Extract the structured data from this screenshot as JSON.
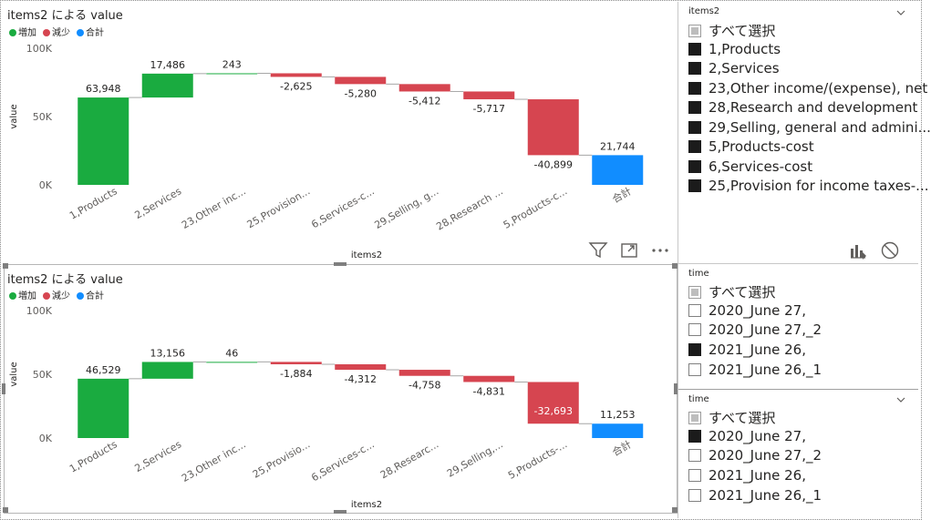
{
  "colors": {
    "increase": "#1aab40",
    "decrease": "#d64550",
    "total": "#118dff",
    "text": "#252423",
    "axis": "#605e5c",
    "grid": "#e1e1e1"
  },
  "legend": {
    "items": [
      {
        "label": "増加",
        "color": "#1aab40"
      },
      {
        "label": "減少",
        "color": "#d64550"
      },
      {
        "label": "合計",
        "color": "#118dff"
      }
    ]
  },
  "chart_data": [
    {
      "type": "waterfall",
      "title": "items2 による value",
      "xlabel": "items2",
      "ylabel": "value",
      "ylim": [
        0,
        100000
      ],
      "y_ticks": [
        "0K",
        "50K",
        "100K"
      ],
      "y_tick_values": [
        0,
        50000,
        100000
      ],
      "categories": [
        "1,Products",
        "2,Services",
        "23,Other inc...",
        "25,Provision...",
        "6,Services-c...",
        "29,Selling, g...",
        "28,Research ...",
        "5,Products-c...",
        "合計"
      ],
      "values": [
        63948,
        17486,
        243,
        -2625,
        -5280,
        -5412,
        -5717,
        -40899,
        21744
      ],
      "labels": [
        "63,948",
        "17,486",
        "243",
        "-2,625",
        "-5,280",
        "-5,412",
        "-5,717",
        "-40,899",
        "21,744"
      ],
      "kinds": [
        "increase",
        "increase",
        "increase",
        "decrease",
        "decrease",
        "decrease",
        "decrease",
        "decrease",
        "total"
      ]
    },
    {
      "type": "waterfall",
      "title": "items2 による value",
      "xlabel": "items2",
      "ylabel": "value",
      "ylim": [
        0,
        100000
      ],
      "y_ticks": [
        "0K",
        "50K",
        "100K"
      ],
      "y_tick_values": [
        0,
        50000,
        100000
      ],
      "categories": [
        "1,Products",
        "2,Services",
        "23,Other inc...",
        "25,Provisio...",
        "6,Services-c...",
        "28,Researc...",
        "29,Selling,...",
        "5,Products-...",
        "合計"
      ],
      "values": [
        46529,
        13156,
        46,
        -1884,
        -4312,
        -4758,
        -4831,
        -32693,
        11253
      ],
      "labels": [
        "46,529",
        "13,156",
        "46",
        "-1,884",
        "-4,312",
        "-4,758",
        "-4,831",
        "-32,693",
        "11,253"
      ],
      "kinds": [
        "increase",
        "increase",
        "increase",
        "decrease",
        "decrease",
        "decrease",
        "decrease",
        "decrease",
        "total"
      ]
    }
  ],
  "slicers": {
    "items2": {
      "title": "items2",
      "items": [
        {
          "label": "すべて選択",
          "state": "partial"
        },
        {
          "label": "1,Products",
          "state": "on"
        },
        {
          "label": "2,Services",
          "state": "on"
        },
        {
          "label": "23,Other income/(expense), net",
          "state": "on"
        },
        {
          "label": "28,Research and development",
          "state": "on"
        },
        {
          "label": "29,Selling, general and admini...",
          "state": "on"
        },
        {
          "label": "5,Products-cost",
          "state": "on"
        },
        {
          "label": "6,Services-cost",
          "state": "on"
        },
        {
          "label": "25,Provision for income taxes-...",
          "state": "on"
        }
      ]
    },
    "time1": {
      "title": "time",
      "items": [
        {
          "label": "すべて選択",
          "state": "partial"
        },
        {
          "label": "2020_June 27,",
          "state": "off"
        },
        {
          "label": "2020_June 27,_2",
          "state": "off"
        },
        {
          "label": "2021_June 26,",
          "state": "on"
        },
        {
          "label": "2021_June 26,_1",
          "state": "off"
        }
      ]
    },
    "time2": {
      "title": "time",
      "items": [
        {
          "label": "すべて選択",
          "state": "partial"
        },
        {
          "label": "2020_June 27,",
          "state": "on"
        },
        {
          "label": "2020_June 27,_2",
          "state": "off"
        },
        {
          "label": "2021_June 26,",
          "state": "off"
        },
        {
          "label": "2021_June 26,_1",
          "state": "off"
        }
      ]
    }
  }
}
